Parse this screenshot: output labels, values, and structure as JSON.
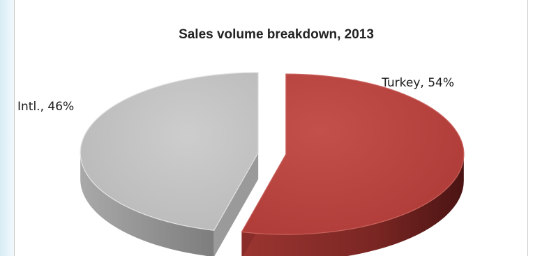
{
  "chart_data": {
    "type": "pie",
    "style": "3d-exploded",
    "title": "Sales volume breakdown, 2013",
    "slices": [
      {
        "label": "Turkey",
        "value": 54,
        "display": "Turkey, 54%",
        "color": "#b5403c",
        "side_color": "#6e1f1d"
      },
      {
        "label": "Intl.",
        "value": 46,
        "display": "Intl., 46%",
        "color": "#bcbcbc",
        "side_color": "#8c8c8c"
      }
    ],
    "legend": "none"
  }
}
